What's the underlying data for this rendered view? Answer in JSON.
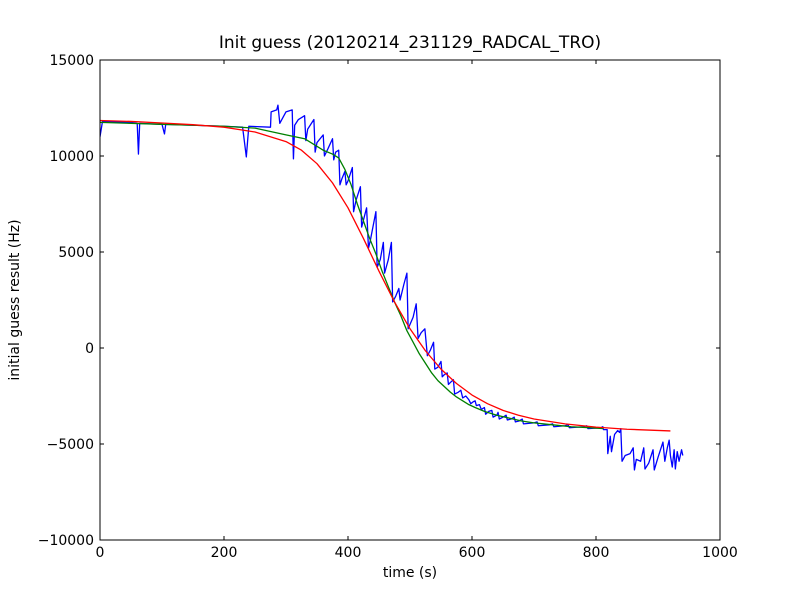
{
  "chart_data": {
    "type": "line",
    "title": "Init guess (20120214_231129_RADCAL_TRO)",
    "xlabel": "time (s)",
    "ylabel": "initial guess result (Hz)",
    "xlim": [
      0,
      1000
    ],
    "ylim": [
      -10000,
      15000
    ],
    "xticks": [
      0,
      200,
      400,
      600,
      800,
      1000
    ],
    "yticks": [
      -10000,
      -5000,
      0,
      5000,
      10000,
      15000
    ],
    "xtick_labels": [
      "0",
      "200",
      "400",
      "600",
      "800",
      "1000"
    ],
    "ytick_labels": [
      "−10000",
      "−5000",
      "0",
      "5000",
      "10000",
      "15000"
    ],
    "grid": false,
    "legend": "none",
    "series": [
      {
        "color": "#0000ff",
        "points": [
          [
            0,
            11000
          ],
          [
            4,
            11800
          ],
          [
            50,
            11750
          ],
          [
            60,
            11700
          ],
          [
            62,
            10100
          ],
          [
            64,
            11700
          ],
          [
            100,
            11650
          ],
          [
            104,
            11150
          ],
          [
            106,
            11650
          ],
          [
            150,
            11600
          ],
          [
            200,
            11550
          ],
          [
            230,
            11500
          ],
          [
            236,
            9950
          ],
          [
            240,
            11550
          ],
          [
            275,
            11500
          ],
          [
            276,
            12300
          ],
          [
            285,
            12400
          ],
          [
            287,
            12650
          ],
          [
            290,
            11700
          ],
          [
            300,
            12300
          ],
          [
            310,
            12400
          ],
          [
            312,
            9850
          ],
          [
            314,
            11600
          ],
          [
            320,
            11900
          ],
          [
            330,
            12100
          ],
          [
            332,
            10800
          ],
          [
            335,
            11400
          ],
          [
            345,
            11900
          ],
          [
            347,
            10200
          ],
          [
            350,
            10700
          ],
          [
            360,
            11100
          ],
          [
            362,
            10000
          ],
          [
            368,
            10400
          ],
          [
            375,
            10900
          ],
          [
            377,
            9800
          ],
          [
            380,
            10200
          ],
          [
            385,
            10300
          ],
          [
            387,
            8500
          ],
          [
            390,
            8800
          ],
          [
            395,
            9200
          ],
          [
            397,
            8500
          ],
          [
            400,
            8700
          ],
          [
            407,
            9400
          ],
          [
            409,
            7100
          ],
          [
            413,
            7700
          ],
          [
            420,
            8400
          ],
          [
            422,
            6300
          ],
          [
            430,
            7300
          ],
          [
            433,
            5200
          ],
          [
            436,
            5600
          ],
          [
            445,
            7100
          ],
          [
            447,
            4200
          ],
          [
            452,
            4600
          ],
          [
            457,
            5500
          ],
          [
            459,
            3900
          ],
          [
            465,
            4600
          ],
          [
            470,
            5500
          ],
          [
            472,
            2400
          ],
          [
            477,
            2700
          ],
          [
            482,
            3100
          ],
          [
            484,
            2500
          ],
          [
            490,
            3300
          ],
          [
            495,
            3900
          ],
          [
            497,
            1000
          ],
          [
            505,
            1600
          ],
          [
            510,
            2300
          ],
          [
            513,
            500
          ],
          [
            518,
            800
          ],
          [
            524,
            1000
          ],
          [
            528,
            -400
          ],
          [
            533,
            -100
          ],
          [
            538,
            300
          ],
          [
            540,
            -1100
          ],
          [
            545,
            -1000
          ],
          [
            550,
            -700
          ],
          [
            552,
            -1500
          ],
          [
            555,
            -1400
          ],
          [
            560,
            -1300
          ],
          [
            562,
            -1900
          ],
          [
            565,
            -1800
          ],
          [
            570,
            -1650
          ],
          [
            572,
            -2400
          ],
          [
            578,
            -2300
          ],
          [
            582,
            -2200
          ],
          [
            585,
            -2600
          ],
          [
            590,
            -2500
          ],
          [
            595,
            -2700
          ],
          [
            598,
            -2900
          ],
          [
            602,
            -2800
          ],
          [
            605,
            -2750
          ],
          [
            607,
            -3000
          ],
          [
            612,
            -2950
          ],
          [
            615,
            -3200
          ],
          [
            620,
            -3100
          ],
          [
            622,
            -3450
          ],
          [
            627,
            -3300
          ],
          [
            632,
            -3250
          ],
          [
            634,
            -3600
          ],
          [
            640,
            -3500
          ],
          [
            642,
            -3350
          ],
          [
            644,
            -3700
          ],
          [
            650,
            -3600
          ],
          [
            655,
            -3500
          ],
          [
            657,
            -3750
          ],
          [
            663,
            -3700
          ],
          [
            668,
            -3600
          ],
          [
            670,
            -3850
          ],
          [
            676,
            -3800
          ],
          [
            681,
            -3700
          ],
          [
            683,
            -3950
          ],
          [
            700,
            -3900
          ],
          [
            705,
            -3850
          ],
          [
            707,
            -4050
          ],
          [
            725,
            -4000
          ],
          [
            730,
            -3950
          ],
          [
            732,
            -4100
          ],
          [
            750,
            -4050
          ],
          [
            755,
            -4000
          ],
          [
            757,
            -4150
          ],
          [
            780,
            -4100
          ],
          [
            785,
            -4050
          ],
          [
            787,
            -4200
          ],
          [
            808,
            -4150
          ],
          [
            811,
            -4100
          ],
          [
            812,
            -4250
          ],
          [
            818,
            -4250
          ],
          [
            819,
            -5500
          ],
          [
            823,
            -4600
          ],
          [
            825,
            -5400
          ],
          [
            830,
            -4500
          ],
          [
            835,
            -4300
          ],
          [
            838,
            -4400
          ],
          [
            840,
            -4200
          ],
          [
            842,
            -5900
          ],
          [
            847,
            -5600
          ],
          [
            855,
            -5500
          ],
          [
            860,
            -5200
          ],
          [
            862,
            -6350
          ],
          [
            865,
            -5800
          ],
          [
            872,
            -5900
          ],
          [
            877,
            -5200
          ],
          [
            879,
            -6300
          ],
          [
            885,
            -6000
          ],
          [
            892,
            -5300
          ],
          [
            894,
            -6350
          ],
          [
            900,
            -5700
          ],
          [
            908,
            -4900
          ],
          [
            911,
            -5900
          ],
          [
            915,
            -5200
          ],
          [
            918,
            -4800
          ],
          [
            920,
            -5600
          ],
          [
            923,
            -6200
          ],
          [
            926,
            -5300
          ],
          [
            928,
            -6300
          ],
          [
            931,
            -5400
          ],
          [
            934,
            -5900
          ],
          [
            938,
            -5300
          ],
          [
            940,
            -5600
          ]
        ]
      },
      {
        "color": "#008000",
        "points": [
          [
            0,
            11750
          ],
          [
            50,
            11700
          ],
          [
            100,
            11650
          ],
          [
            150,
            11600
          ],
          [
            200,
            11550
          ],
          [
            250,
            11450
          ],
          [
            300,
            11100
          ],
          [
            330,
            10900
          ],
          [
            360,
            10300
          ],
          [
            375,
            10100
          ],
          [
            385,
            9900
          ],
          [
            395,
            9300
          ],
          [
            405,
            8500
          ],
          [
            415,
            7500
          ],
          [
            425,
            6600
          ],
          [
            435,
            5700
          ],
          [
            445,
            4900
          ],
          [
            455,
            4000
          ],
          [
            465,
            3200
          ],
          [
            475,
            2400
          ],
          [
            485,
            1700
          ],
          [
            495,
            900
          ],
          [
            505,
            300
          ],
          [
            515,
            -300
          ],
          [
            525,
            -800
          ],
          [
            535,
            -1300
          ],
          [
            545,
            -1700
          ],
          [
            555,
            -2000
          ],
          [
            565,
            -2300
          ],
          [
            575,
            -2550
          ],
          [
            585,
            -2750
          ],
          [
            595,
            -2950
          ],
          [
            605,
            -3100
          ],
          [
            620,
            -3300
          ],
          [
            640,
            -3500
          ],
          [
            660,
            -3650
          ],
          [
            680,
            -3800
          ],
          [
            700,
            -3900
          ],
          [
            730,
            -4000
          ],
          [
            760,
            -4100
          ],
          [
            790,
            -4150
          ],
          [
            812,
            -4200
          ]
        ]
      },
      {
        "color": "#ff0000",
        "points": [
          [
            0,
            11850
          ],
          [
            50,
            11800
          ],
          [
            100,
            11720
          ],
          [
            150,
            11630
          ],
          [
            200,
            11500
          ],
          [
            250,
            11250
          ],
          [
            300,
            10750
          ],
          [
            325,
            10300
          ],
          [
            350,
            9600
          ],
          [
            375,
            8600
          ],
          [
            400,
            7300
          ],
          [
            425,
            5700
          ],
          [
            450,
            4000
          ],
          [
            475,
            2400
          ],
          [
            500,
            1000
          ],
          [
            525,
            -150
          ],
          [
            550,
            -1100
          ],
          [
            575,
            -1850
          ],
          [
            600,
            -2450
          ],
          [
            625,
            -2900
          ],
          [
            650,
            -3250
          ],
          [
            675,
            -3500
          ],
          [
            700,
            -3700
          ],
          [
            750,
            -3950
          ],
          [
            800,
            -4120
          ],
          [
            850,
            -4230
          ],
          [
            920,
            -4320
          ]
        ]
      }
    ]
  }
}
